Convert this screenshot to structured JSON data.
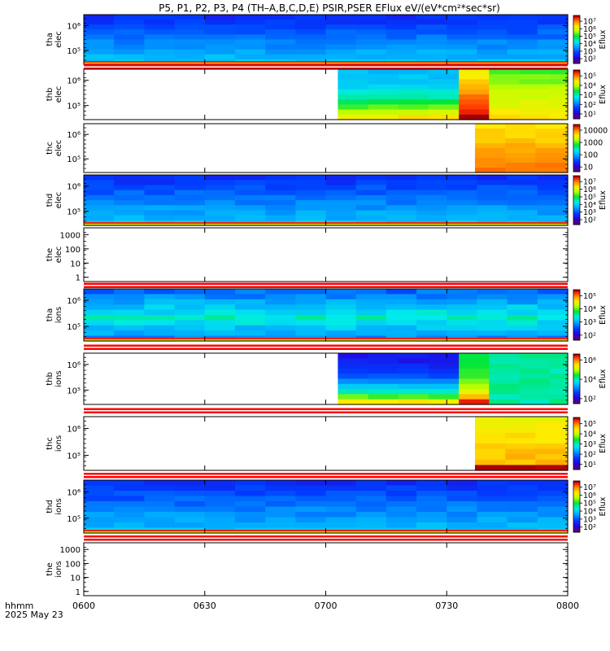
{
  "title": "P5, P1, P2, P3, P4 (TH–A,B,C,D,E) PSIR,PSER EFlux eV/(eV*cm²*sec*sr)",
  "x_axis": {
    "prefix": "hhmm",
    "date": "2025 May 23",
    "ticks": [
      "0600",
      "0630",
      "0700",
      "0730",
      "0800"
    ],
    "range_minutes": [
      0,
      120
    ]
  },
  "chart_data": [
    {
      "type": "heatmap",
      "name": "tha-elec",
      "ylabel": [
        "tha",
        "elec"
      ],
      "yscale": "log",
      "yticks": [
        "10⁶",
        "10⁵"
      ],
      "colorbar": {
        "label": "Eflux",
        "scale": "log",
        "ticks": [
          "10⁷",
          "10⁶",
          "10⁵",
          "10⁴",
          "10³",
          "10²"
        ]
      },
      "data_start_minute": 0,
      "data_end_minute": 120,
      "profile": "blue_low",
      "red_bottom_line": true
    },
    {
      "type": "heatmap",
      "name": "thb-elec",
      "ylabel": [
        "thb",
        "elec"
      ],
      "yscale": "log",
      "yticks": [
        "10⁶",
        "10⁵"
      ],
      "colorbar": {
        "label": "Eflux",
        "scale": "log",
        "ticks": [
          "10⁵",
          "10⁴",
          "10³",
          "10²",
          "10¹"
        ]
      },
      "data_start_minute": 63,
      "data_end_minute": 120,
      "profile": "thb_elec"
    },
    {
      "type": "heatmap",
      "name": "thc-elec",
      "ylabel": [
        "thc",
        "elec"
      ],
      "yscale": "log",
      "yticks": [
        "10⁶",
        "10⁵"
      ],
      "colorbar": {
        "label": "",
        "scale": "log",
        "ticks": [
          "10000",
          "1000",
          "100",
          "10"
        ]
      },
      "data_start_minute": 97,
      "data_end_minute": 120,
      "profile": "thc_elec"
    },
    {
      "type": "heatmap",
      "name": "thd-elec",
      "ylabel": [
        "thd",
        "elec"
      ],
      "yscale": "log",
      "yticks": [
        "10⁶",
        "10⁵"
      ],
      "colorbar": {
        "label": "Eflux",
        "scale": "log",
        "ticks": [
          "10⁷",
          "10⁶",
          "10⁵",
          "10⁴",
          "10³",
          "10²"
        ]
      },
      "data_start_minute": 0,
      "data_end_minute": 120,
      "profile": "blue_low",
      "red_bottom_line": true
    },
    {
      "type": "heatmap",
      "name": "the-elec",
      "ylabel": [
        "the",
        "elec"
      ],
      "yscale": "log",
      "yticks": [
        "1000",
        "100",
        "10",
        "1"
      ],
      "yrange": [
        0.5,
        3000
      ],
      "colorbar": null,
      "data_start_minute": null,
      "data_end_minute": null,
      "profile": "empty"
    },
    {
      "type": "heatmap",
      "name": "tha-ions",
      "ylabel": [
        "tha",
        "ions"
      ],
      "yscale": "log",
      "yticks": [
        "10⁶",
        "10⁵"
      ],
      "colorbar": {
        "label": "Eflux",
        "scale": "log",
        "ticks": [
          "10⁵",
          "10⁴",
          "10³",
          "10²"
        ]
      },
      "data_start_minute": 0,
      "data_end_minute": 120,
      "profile": "cyan_mid",
      "red_bottom_line": true
    },
    {
      "type": "heatmap",
      "name": "thb-ions",
      "ylabel": [
        "thb",
        "ions"
      ],
      "yscale": "log",
      "yticks": [
        "10⁶",
        "10⁵"
      ],
      "colorbar": {
        "label": "Eflux",
        "scale": "log",
        "ticks": [
          "10⁶",
          "10⁴",
          "10²"
        ]
      },
      "data_start_minute": 63,
      "data_end_minute": 120,
      "profile": "thb_ions"
    },
    {
      "type": "heatmap",
      "name": "thc-ions",
      "ylabel": [
        "thc",
        "ions"
      ],
      "yscale": "log",
      "yticks": [
        "10⁶",
        "10⁵"
      ],
      "colorbar": {
        "label": "Eflux",
        "scale": "log",
        "ticks": [
          "10⁵",
          "10⁴",
          "10³",
          "10²",
          "10¹"
        ]
      },
      "data_start_minute": 97,
      "data_end_minute": 120,
      "profile": "thc_ions"
    },
    {
      "type": "heatmap",
      "name": "thd-ions",
      "ylabel": [
        "thd",
        "ions"
      ],
      "yscale": "log",
      "yticks": [
        "10⁶",
        "10⁵"
      ],
      "colorbar": {
        "label": "Eflux",
        "scale": "log",
        "ticks": [
          "10⁷",
          "10⁶",
          "10⁵",
          "10⁴",
          "10³",
          "10²"
        ]
      },
      "data_start_minute": 0,
      "data_end_minute": 120,
      "profile": "blue_low",
      "red_bottom_line": true
    },
    {
      "type": "heatmap",
      "name": "the-ions",
      "ylabel": [
        "the",
        "ions"
      ],
      "yscale": "log",
      "yticks": [
        "1000",
        "100",
        "10",
        "1"
      ],
      "yrange": [
        0.5,
        3000
      ],
      "colorbar": null,
      "data_start_minute": null,
      "data_end_minute": null,
      "profile": "empty"
    }
  ]
}
